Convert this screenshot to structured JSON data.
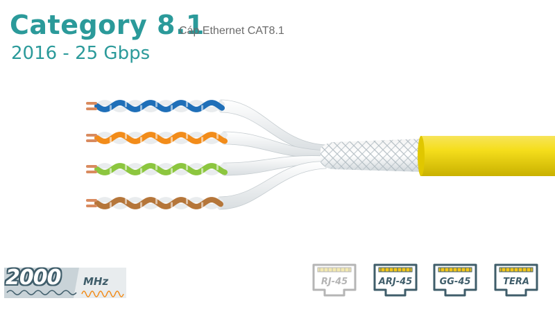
{
  "header": {
    "title": "Category 8.1",
    "subtitle": "Cáp Ethernet CAT8.1",
    "year_speed": "2016 - 25 Gbps"
  },
  "frequency": {
    "value": "2000",
    "unit": "MHz"
  },
  "connectors": [
    {
      "label": "RJ-45",
      "color": "#b5b5b5"
    },
    {
      "label": "ARJ-45",
      "color": "#3f5d6a"
    },
    {
      "label": "GG-45",
      "color": "#3f5d6a"
    },
    {
      "label": "TERA",
      "color": "#3f5d6a"
    }
  ],
  "pairs": [
    {
      "color": "#1f6fb8"
    },
    {
      "color": "#f28c1a"
    },
    {
      "color": "#8cc63f"
    },
    {
      "color": "#b5763a"
    }
  ],
  "colors": {
    "accent": "#2b9a9a",
    "jacket": "#f5de1c",
    "frame": "#3f5d6a"
  }
}
